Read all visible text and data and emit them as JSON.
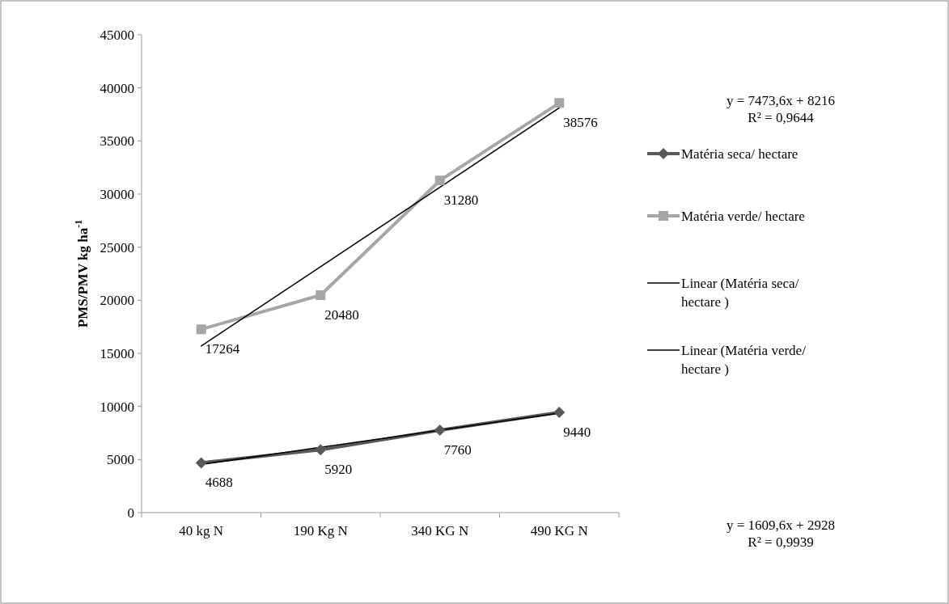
{
  "chart_data": {
    "type": "line",
    "ylabel": "PMS/PMV kg ha$^{-1}$",
    "categories": [
      "40 kg N",
      "190 Kg N",
      "340 KG N",
      "490 KG N"
    ],
    "series": [
      {
        "name": "Matéria seca/ hectare",
        "color": "#595959",
        "values": [
          4688,
          5920,
          7760,
          9440
        ],
        "marker": "diamond",
        "data_labels": true
      },
      {
        "name": "Matéria verde/ hectare",
        "color": "#a6a6a6",
        "values": [
          17264,
          20480,
          31280,
          38576
        ],
        "marker": "square",
        "data_labels": true
      },
      {
        "name": "Linear (Matéria seca/ hectare )",
        "color": "#000000",
        "values": [
          4540,
          6150,
          7760,
          9370
        ],
        "marker": "none"
      },
      {
        "name": "Linear (Matéria verde/ hectare )",
        "color": "#000000",
        "values": [
          15690,
          23160,
          30640,
          38110
        ],
        "marker": "none"
      }
    ],
    "ylim": [
      0,
      45000
    ],
    "yticks": [
      0,
      5000,
      10000,
      15000,
      20000,
      25000,
      30000,
      35000,
      40000,
      45000
    ],
    "grid": false,
    "legend": "right",
    "line_style": "solid",
    "annotations": [
      "y = 7473,6x + 8216\nR² = 0,9644",
      "y = 1609,6x + 2928\nR² = 0,9939"
    ]
  }
}
